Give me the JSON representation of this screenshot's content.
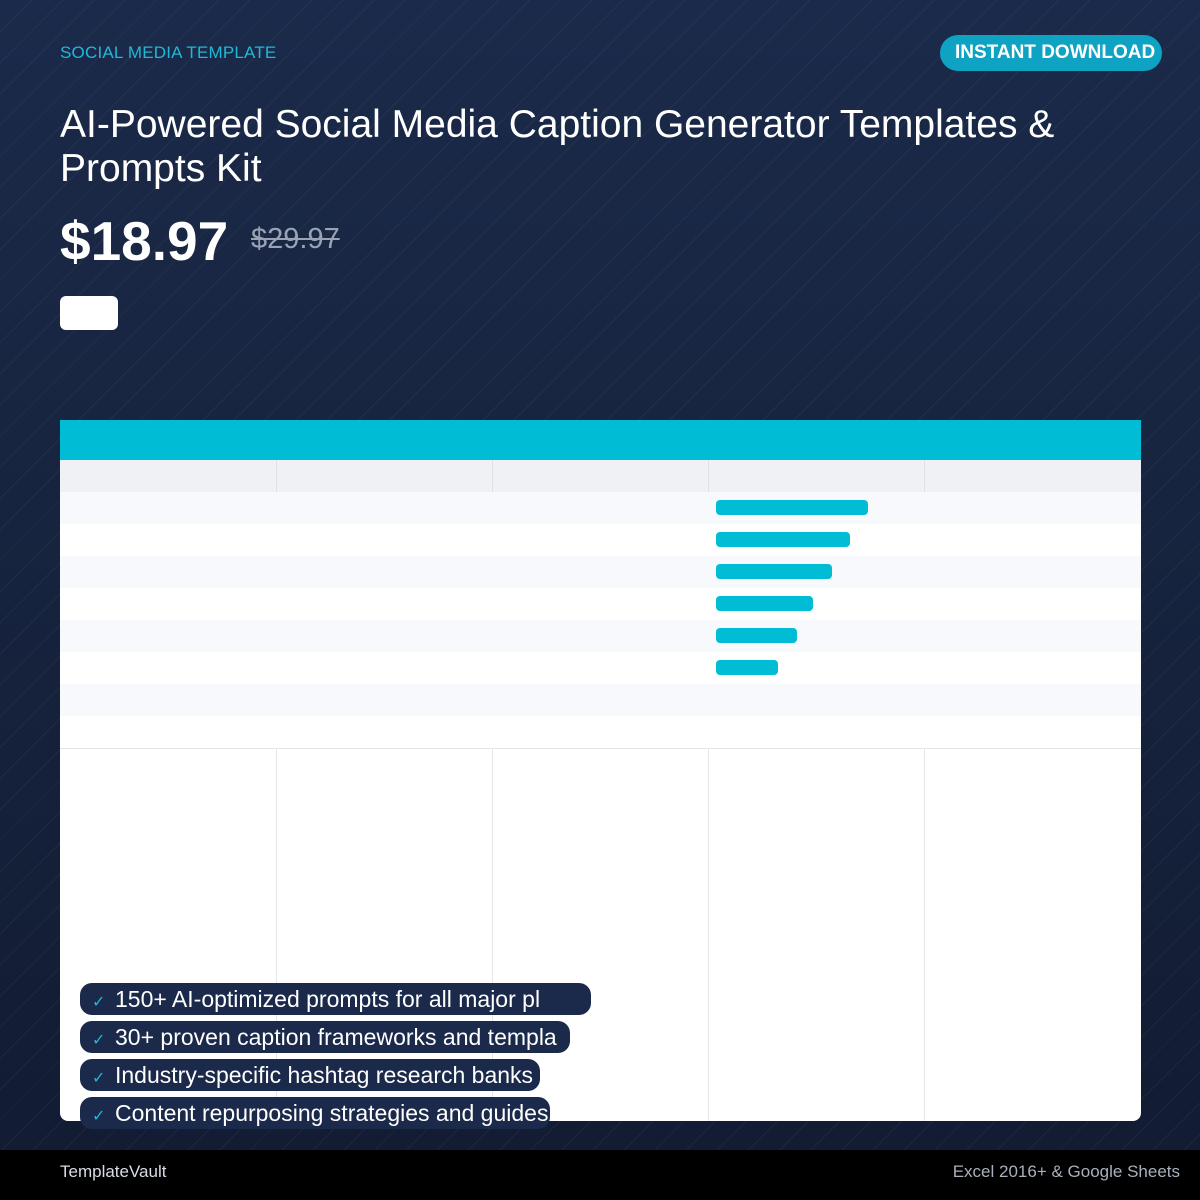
{
  "header": {
    "category": "SOCIAL MEDIA TEMPLATE",
    "badge": "INSTANT DOWNLOAD",
    "title": "AI-Powered Social Media Caption Generator Templates & Prompts Kit"
  },
  "pricing": {
    "price": "$18.97",
    "original_price": "$29.97"
  },
  "preview": {
    "progress_bars": [
      1.0,
      0.88,
      0.76,
      0.64,
      0.53,
      0.41
    ]
  },
  "features": [
    {
      "icon": "check-icon",
      "text": "150+ AI-optimized prompts for all major pl"
    },
    {
      "icon": "check-icon",
      "text": "30+ proven caption frameworks and templa"
    },
    {
      "icon": "check-icon",
      "text": "Industry-specific hashtag research banks"
    },
    {
      "icon": "check-icon",
      "text": "Content repurposing strategies and guides"
    }
  ],
  "footer": {
    "brand": "TemplateVault",
    "compatibility": "Excel 2016+ & Google Sheets"
  },
  "colors": {
    "accent": "#00bcd4",
    "background": "#1b2a4a",
    "footer": "#000000"
  }
}
